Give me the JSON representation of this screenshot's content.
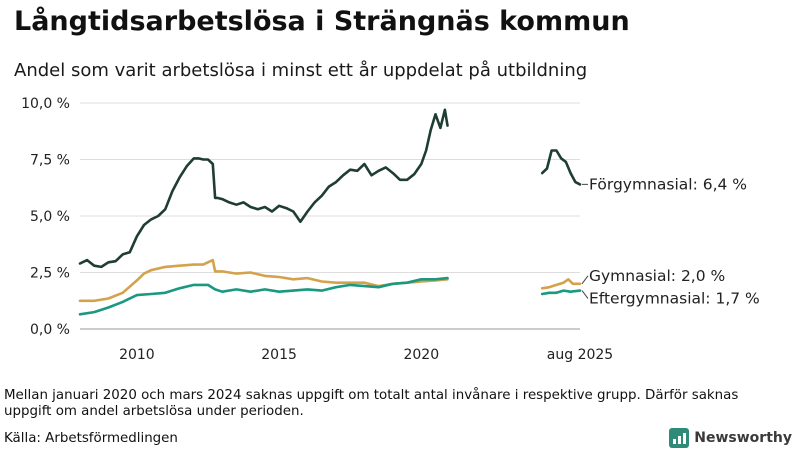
{
  "chart_data": {
    "type": "line",
    "title": "Långtidsarbetslösa i Strängnäs kommun",
    "subtitle": "Andel som varit arbetslösa i minst ett år uppdelat på utbildning",
    "xlabel": "",
    "ylabel": "",
    "ylim": [
      0,
      10
    ],
    "yticks": [
      {
        "value": 0,
        "label": "0,0 %"
      },
      {
        "value": 2.5,
        "label": "2,5 %"
      },
      {
        "value": 5,
        "label": "5,0 %"
      },
      {
        "value": 7.5,
        "label": "7,5 %"
      },
      {
        "value": 10,
        "label": "10,0 %"
      }
    ],
    "xlim": [
      2008.0,
      2025.58
    ],
    "xticks": [
      {
        "value": 2010,
        "label": "2010"
      },
      {
        "value": 2015,
        "label": "2015"
      },
      {
        "value": 2020,
        "label": "2020"
      },
      {
        "value": 2025.58,
        "label": "aug 2025"
      }
    ],
    "grid": true,
    "series": [
      {
        "name": "Förgymnasial",
        "color": "#1f3d33",
        "end_label": "Förgymnasial: 6,4 %",
        "segments": [
          {
            "x": [
              2008.0,
              2008.25,
              2008.5,
              2008.75,
              2009.0,
              2009.25,
              2009.5,
              2009.75,
              2010.0,
              2010.25,
              2010.5,
              2010.75,
              2011.0,
              2011.25,
              2011.5,
              2011.75,
              2012.0,
              2012.17,
              2012.33,
              2012.5,
              2012.67,
              2012.75,
              2012.83,
              2013.0,
              2013.25,
              2013.5,
              2013.75,
              2014.0,
              2014.25,
              2014.5,
              2014.75,
              2015.0,
              2015.25,
              2015.5,
              2015.75,
              2016.0,
              2016.25,
              2016.5,
              2016.75,
              2017.0,
              2017.25,
              2017.5,
              2017.75,
              2018.0,
              2018.25,
              2018.5,
              2018.75,
              2019.0,
              2019.25,
              2019.5,
              2019.75,
              2020.0,
              2020.17,
              2020.33,
              2020.5,
              2020.67,
              2020.83,
              2020.92
            ],
            "y": [
              2.9,
              3.05,
              2.8,
              2.75,
              2.95,
              3.0,
              3.3,
              3.4,
              4.1,
              4.6,
              4.85,
              5.0,
              5.3,
              6.1,
              6.7,
              7.2,
              7.55,
              7.55,
              7.5,
              7.5,
              7.3,
              5.8,
              5.8,
              5.75,
              5.6,
              5.5,
              5.6,
              5.4,
              5.3,
              5.4,
              5.2,
              5.45,
              5.35,
              5.2,
              4.75,
              5.2,
              5.6,
              5.9,
              6.3,
              6.5,
              6.8,
              7.05,
              7.0,
              7.3,
              6.8,
              7.0,
              7.15,
              6.9,
              6.6,
              6.6,
              6.85,
              7.3,
              7.9,
              8.8,
              9.5,
              8.9,
              9.7,
              9.0
            ]
          },
          {
            "x": [
              2024.25,
              2024.42,
              2024.58,
              2024.75,
              2024.92,
              2025.08,
              2025.25,
              2025.42,
              2025.58
            ],
            "y": [
              6.9,
              7.1,
              7.9,
              7.9,
              7.55,
              7.4,
              6.9,
              6.5,
              6.4
            ]
          }
        ]
      },
      {
        "name": "Gymnasial",
        "color": "#d4a24c",
        "end_label": "Gymnasial: 2,0 %",
        "segments": [
          {
            "x": [
              2008.0,
              2008.5,
              2009.0,
              2009.5,
              2010.0,
              2010.25,
              2010.5,
              2011.0,
              2011.5,
              2012.0,
              2012.33,
              2012.5,
              2012.67,
              2012.75,
              2013.0,
              2013.5,
              2014.0,
              2014.5,
              2015.0,
              2015.5,
              2016.0,
              2016.5,
              2017.0,
              2017.5,
              2018.0,
              2018.5,
              2019.0,
              2019.5,
              2020.0,
              2020.5,
              2020.92
            ],
            "y": [
              1.25,
              1.25,
              1.35,
              1.6,
              2.15,
              2.45,
              2.6,
              2.75,
              2.8,
              2.85,
              2.85,
              2.95,
              3.05,
              2.55,
              2.55,
              2.45,
              2.5,
              2.35,
              2.3,
              2.2,
              2.25,
              2.1,
              2.05,
              2.05,
              2.05,
              1.9,
              2.0,
              2.05,
              2.1,
              2.15,
              2.2
            ]
          },
          {
            "x": [
              2024.25,
              2024.5,
              2024.75,
              2025.0,
              2025.17,
              2025.33,
              2025.58
            ],
            "y": [
              1.8,
              1.85,
              1.95,
              2.05,
              2.2,
              2.0,
              2.0
            ]
          }
        ]
      },
      {
        "name": "Eftergymnasial",
        "color": "#1a9880",
        "end_label": "Eftergymnasial: 1,7 %",
        "segments": [
          {
            "x": [
              2008.0,
              2008.5,
              2009.0,
              2009.5,
              2010.0,
              2010.5,
              2011.0,
              2011.5,
              2012.0,
              2012.5,
              2012.75,
              2013.0,
              2013.5,
              2014.0,
              2014.5,
              2015.0,
              2015.5,
              2016.0,
              2016.5,
              2017.0,
              2017.5,
              2018.0,
              2018.5,
              2019.0,
              2019.5,
              2020.0,
              2020.5,
              2020.92
            ],
            "y": [
              0.65,
              0.75,
              0.95,
              1.2,
              1.5,
              1.55,
              1.6,
              1.8,
              1.95,
              1.95,
              1.75,
              1.65,
              1.75,
              1.65,
              1.75,
              1.65,
              1.7,
              1.75,
              1.7,
              1.85,
              1.95,
              1.9,
              1.85,
              2.0,
              2.05,
              2.2,
              2.2,
              2.25
            ]
          },
          {
            "x": [
              2024.25,
              2024.5,
              2024.75,
              2025.0,
              2025.25,
              2025.58
            ],
            "y": [
              1.55,
              1.6,
              1.6,
              1.7,
              1.65,
              1.7
            ]
          }
        ]
      }
    ],
    "note": "Mellan januari 2020 och mars 2024 saknas uppgift om totalt antal invånare i respektive grupp. Därför saknas uppgift om andel arbetslösa under perioden.",
    "source": "Källa: Arbetsförmedlingen",
    "brand": "Newsworthy"
  }
}
